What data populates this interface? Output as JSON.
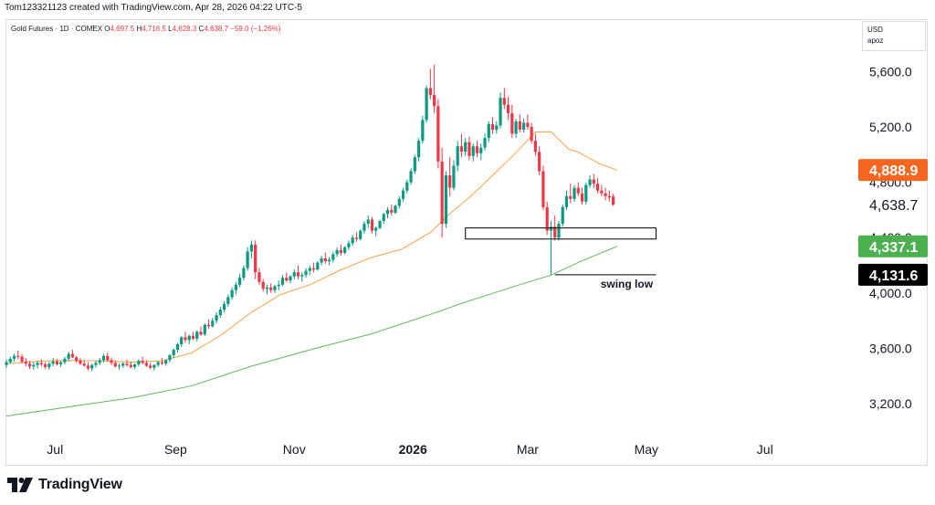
{
  "header": {
    "attribution": "Tom123321123 created with TradingView.com, Apr 28, 2026 04:22 UTC-5"
  },
  "legend": {
    "symbol": "Gold Futures · 1D · COMEX",
    "open_label": "O",
    "open": "4,697.5",
    "high_label": "H",
    "high": "4,716.5",
    "low_label": "L",
    "low": "4,628.3",
    "close_label": "C",
    "close": "4,638.7",
    "change": "−59.0 (−1.26%)"
  },
  "currency": {
    "code": "USD",
    "unit": "apoz"
  },
  "footer": {
    "brand": "TradingView"
  },
  "colors": {
    "up": "#089981",
    "down": "#f23645",
    "ema50": "#f7a146",
    "ma200": "#5cb85c",
    "ema50_tag": "#f7661e",
    "ma200_tag": "#4caf50",
    "swing_tag": "#000000"
  },
  "chart_data": {
    "type": "candlestick",
    "title": "Gold Futures · 1D · COMEX",
    "ylim": [
      2950,
      5820
    ],
    "y_ticks": [
      "5,600.0",
      "5,200.0",
      "4,800.0",
      "4,400.0",
      "4,000.0",
      "3,600.0",
      "3,200.0"
    ],
    "y_tick_values": [
      5600,
      5200,
      4800,
      4400,
      4000,
      3600,
      3200
    ],
    "x_labels": [
      {
        "label": "Jul",
        "day": 7
      },
      {
        "label": "Sep",
        "day": 69
      },
      {
        "label": "Nov",
        "day": 130
      },
      {
        "label": "2026",
        "day": 191
      },
      {
        "label": "Mar",
        "day": 250
      },
      {
        "label": "May",
        "day": 311
      },
      {
        "label": "Jul",
        "day": 372
      }
    ],
    "xlim": [
      -18,
      420
    ],
    "price_tags": [
      {
        "name": "ema50",
        "label": "4,888.9",
        "value": 4888.9,
        "color": "#f7661e",
        "text_color": "#ffffff"
      },
      {
        "name": "last",
        "label": "4,638.7",
        "value": 4638.7,
        "color": "none",
        "text_color": "#131722"
      },
      {
        "name": "ma200",
        "label": "4,337.1",
        "value": 4337.1,
        "color": "#4caf50",
        "text_color": "#ffffff"
      },
      {
        "name": "swing-low",
        "label": "4,131.6",
        "value": 4131.6,
        "color": "#000000",
        "text_color": "#ffffff"
      }
    ],
    "support_zone": {
      "day_start": 218,
      "day_end": 316,
      "price_top": 4470,
      "price_bottom": 4390
    },
    "swing_low": {
      "label": "swing low",
      "price": 4131.6,
      "day_start": 264,
      "day_end": 316
    },
    "ema50_series": [
      [
        -18,
        3490
      ],
      [
        0,
        3508
      ],
      [
        15,
        3513
      ],
      [
        31,
        3510
      ],
      [
        46,
        3500
      ],
      [
        62,
        3510
      ],
      [
        77,
        3566
      ],
      [
        92,
        3692
      ],
      [
        108,
        3861
      ],
      [
        123,
        3989
      ],
      [
        138,
        4060
      ],
      [
        154,
        4167
      ],
      [
        169,
        4254
      ],
      [
        185,
        4316
      ],
      [
        200,
        4437
      ],
      [
        211,
        4586
      ],
      [
        220,
        4689
      ],
      [
        232,
        4850
      ],
      [
        243,
        5000
      ],
      [
        254,
        5164
      ],
      [
        262,
        5165
      ],
      [
        271,
        5041
      ],
      [
        276,
        5018
      ],
      [
        287,
        4933
      ],
      [
        296,
        4888
      ]
    ],
    "ma200_series": [
      [
        -18,
        3111
      ],
      [
        15,
        3179
      ],
      [
        46,
        3242
      ],
      [
        77,
        3328
      ],
      [
        108,
        3471
      ],
      [
        138,
        3589
      ],
      [
        169,
        3702
      ],
      [
        200,
        3845
      ],
      [
        217,
        3930
      ],
      [
        243,
        4047
      ],
      [
        262,
        4129
      ],
      [
        277,
        4227
      ],
      [
        296,
        4337
      ]
    ],
    "candles": [
      [
        -18,
        3480,
        3520,
        3460,
        3500
      ],
      [
        -16,
        3500,
        3540,
        3490,
        3525
      ],
      [
        -14,
        3525,
        3560,
        3505,
        3545
      ],
      [
        -12,
        3545,
        3585,
        3520,
        3540
      ],
      [
        -10,
        3540,
        3560,
        3490,
        3505
      ],
      [
        -8,
        3505,
        3530,
        3470,
        3490
      ],
      [
        -6,
        3490,
        3510,
        3450,
        3470
      ],
      [
        -4,
        3470,
        3500,
        3445,
        3480
      ],
      [
        -2,
        3480,
        3510,
        3455,
        3495
      ],
      [
        0,
        3495,
        3520,
        3470,
        3485
      ],
      [
        2,
        3485,
        3500,
        3450,
        3465
      ],
      [
        4,
        3465,
        3500,
        3445,
        3490
      ],
      [
        6,
        3490,
        3530,
        3470,
        3505
      ],
      [
        8,
        3505,
        3525,
        3475,
        3485
      ],
      [
        10,
        3485,
        3510,
        3465,
        3500
      ],
      [
        12,
        3500,
        3540,
        3485,
        3525
      ],
      [
        14,
        3525,
        3575,
        3505,
        3560
      ],
      [
        16,
        3560,
        3590,
        3530,
        3535
      ],
      [
        18,
        3535,
        3545,
        3495,
        3510
      ],
      [
        20,
        3510,
        3530,
        3480,
        3490
      ],
      [
        22,
        3490,
        3515,
        3470,
        3475
      ],
      [
        24,
        3475,
        3500,
        3440,
        3455
      ],
      [
        26,
        3455,
        3490,
        3435,
        3480
      ],
      [
        28,
        3480,
        3510,
        3460,
        3495
      ],
      [
        30,
        3495,
        3530,
        3480,
        3515
      ],
      [
        32,
        3515,
        3560,
        3500,
        3545
      ],
      [
        34,
        3545,
        3570,
        3505,
        3515
      ],
      [
        36,
        3515,
        3535,
        3480,
        3495
      ],
      [
        38,
        3495,
        3515,
        3460,
        3470
      ],
      [
        40,
        3470,
        3490,
        3445,
        3475
      ],
      [
        42,
        3475,
        3500,
        3460,
        3490
      ],
      [
        44,
        3490,
        3520,
        3470,
        3480
      ],
      [
        46,
        3480,
        3505,
        3455,
        3465
      ],
      [
        48,
        3465,
        3490,
        3450,
        3485
      ],
      [
        50,
        3485,
        3520,
        3470,
        3510
      ],
      [
        52,
        3510,
        3540,
        3485,
        3495
      ],
      [
        54,
        3495,
        3515,
        3465,
        3475
      ],
      [
        56,
        3475,
        3495,
        3450,
        3460
      ],
      [
        58,
        3460,
        3485,
        3440,
        3480
      ],
      [
        60,
        3480,
        3510,
        3465,
        3500
      ],
      [
        62,
        3500,
        3530,
        3480,
        3490
      ],
      [
        64,
        3490,
        3520,
        3475,
        3515
      ],
      [
        66,
        3515,
        3560,
        3500,
        3550
      ],
      [
        68,
        3550,
        3600,
        3530,
        3590
      ],
      [
        70,
        3590,
        3640,
        3570,
        3630
      ],
      [
        72,
        3630,
        3690,
        3610,
        3680
      ],
      [
        74,
        3680,
        3720,
        3640,
        3660
      ],
      [
        76,
        3660,
        3700,
        3630,
        3690
      ],
      [
        78,
        3690,
        3720,
        3660,
        3670
      ],
      [
        80,
        3670,
        3730,
        3650,
        3720
      ],
      [
        82,
        3720,
        3760,
        3690,
        3700
      ],
      [
        84,
        3700,
        3780,
        3690,
        3770
      ],
      [
        86,
        3770,
        3810,
        3740,
        3760
      ],
      [
        88,
        3760,
        3820,
        3750,
        3800
      ],
      [
        90,
        3800,
        3860,
        3780,
        3840
      ],
      [
        92,
        3840,
        3900,
        3820,
        3880
      ],
      [
        94,
        3880,
        3940,
        3860,
        3920
      ],
      [
        96,
        3920,
        3990,
        3900,
        3970
      ],
      [
        98,
        3970,
        4040,
        3950,
        4020
      ],
      [
        100,
        4020,
        4080,
        3990,
        4060
      ],
      [
        102,
        4060,
        4140,
        4040,
        4110
      ],
      [
        104,
        4110,
        4200,
        4090,
        4180
      ],
      [
        106,
        4180,
        4330,
        4160,
        4300
      ],
      [
        108,
        4300,
        4380,
        4250,
        4350
      ],
      [
        110,
        4350,
        4380,
        4100,
        4150
      ],
      [
        112,
        4150,
        4180,
        4060,
        4080
      ],
      [
        114,
        4080,
        4100,
        4010,
        4030
      ],
      [
        116,
        4030,
        4060,
        3990,
        4040
      ],
      [
        118,
        4040,
        4070,
        4000,
        4020
      ],
      [
        120,
        4020,
        4060,
        4000,
        4050
      ],
      [
        122,
        4050,
        4090,
        4020,
        4060
      ],
      [
        124,
        4060,
        4130,
        4050,
        4110
      ],
      [
        126,
        4110,
        4150,
        4080,
        4090
      ],
      [
        128,
        4090,
        4130,
        4070,
        4120
      ],
      [
        130,
        4120,
        4170,
        4100,
        4150
      ],
      [
        132,
        4150,
        4200,
        4100,
        4120
      ],
      [
        134,
        4120,
        4150,
        4080,
        4130
      ],
      [
        136,
        4130,
        4180,
        4110,
        4160
      ],
      [
        138,
        4160,
        4200,
        4130,
        4180
      ],
      [
        140,
        4180,
        4220,
        4150,
        4170
      ],
      [
        142,
        4170,
        4230,
        4160,
        4220
      ],
      [
        144,
        4220,
        4270,
        4200,
        4250
      ],
      [
        146,
        4250,
        4290,
        4210,
        4230
      ],
      [
        148,
        4230,
        4260,
        4200,
        4240
      ],
      [
        150,
        4240,
        4300,
        4220,
        4280
      ],
      [
        152,
        4280,
        4330,
        4260,
        4310
      ],
      [
        154,
        4310,
        4350,
        4270,
        4290
      ],
      [
        156,
        4290,
        4340,
        4280,
        4330
      ],
      [
        158,
        4330,
        4380,
        4310,
        4360
      ],
      [
        160,
        4360,
        4420,
        4340,
        4400
      ],
      [
        162,
        4400,
        4440,
        4370,
        4390
      ],
      [
        164,
        4390,
        4460,
        4380,
        4450
      ],
      [
        166,
        4450,
        4520,
        4430,
        4500
      ],
      [
        168,
        4500,
        4560,
        4470,
        4530
      ],
      [
        170,
        4530,
        4550,
        4430,
        4450
      ],
      [
        172,
        4450,
        4480,
        4410,
        4470
      ],
      [
        174,
        4470,
        4530,
        4460,
        4520
      ],
      [
        176,
        4520,
        4580,
        4500,
        4570
      ],
      [
        178,
        4570,
        4620,
        4540,
        4600
      ],
      [
        180,
        4600,
        4640,
        4560,
        4580
      ],
      [
        182,
        4580,
        4640,
        4570,
        4630
      ],
      [
        184,
        4630,
        4700,
        4610,
        4680
      ],
      [
        186,
        4680,
        4760,
        4660,
        4740
      ],
      [
        188,
        4740,
        4820,
        4720,
        4800
      ],
      [
        190,
        4800,
        4900,
        4780,
        4880
      ],
      [
        192,
        4880,
        5000,
        4860,
        4980
      ],
      [
        194,
        4980,
        5120,
        4950,
        5100
      ],
      [
        196,
        5100,
        5280,
        5080,
        5250
      ],
      [
        198,
        5250,
        5500,
        5230,
        5480
      ],
      [
        200,
        5480,
        5620,
        5400,
        5430
      ],
      [
        202,
        5430,
        5650,
        5300,
        5350
      ],
      [
        204,
        5350,
        5400,
        4900,
        4950
      ],
      [
        206,
        4950,
        5050,
        4400,
        4500
      ],
      [
        208,
        4500,
        4880,
        4470,
        4850
      ],
      [
        210,
        4850,
        4980,
        4700,
        4760
      ],
      [
        212,
        4760,
        4960,
        4740,
        4920
      ],
      [
        214,
        4920,
        5100,
        4880,
        5060
      ],
      [
        216,
        5060,
        5150,
        4980,
        5020
      ],
      [
        218,
        5020,
        5120,
        4990,
        5090
      ],
      [
        220,
        5090,
        5130,
        4960,
        4990
      ],
      [
        222,
        4990,
        5080,
        4950,
        5060
      ],
      [
        224,
        5060,
        5100,
        4980,
        5010
      ],
      [
        226,
        5010,
        5080,
        4960,
        5050
      ],
      [
        228,
        5050,
        5150,
        5030,
        5120
      ],
      [
        230,
        5120,
        5240,
        5090,
        5220
      ],
      [
        232,
        5220,
        5270,
        5150,
        5180
      ],
      [
        234,
        5180,
        5240,
        5150,
        5210
      ],
      [
        236,
        5210,
        5450,
        5190,
        5410
      ],
      [
        238,
        5410,
        5480,
        5330,
        5360
      ],
      [
        240,
        5360,
        5420,
        5250,
        5300
      ],
      [
        242,
        5300,
        5360,
        5120,
        5150
      ],
      [
        244,
        5150,
        5260,
        5120,
        5240
      ],
      [
        246,
        5240,
        5290,
        5160,
        5180
      ],
      [
        248,
        5180,
        5260,
        5160,
        5230
      ],
      [
        250,
        5230,
        5290,
        5180,
        5200
      ],
      [
        252,
        5200,
        5230,
        5080,
        5100
      ],
      [
        254,
        5100,
        5150,
        4990,
        5020
      ],
      [
        256,
        5020,
        5060,
        4850,
        4880
      ],
      [
        258,
        4880,
        4920,
        4600,
        4620
      ],
      [
        260,
        4620,
        4660,
        4420,
        4450
      ],
      [
        262,
        4450,
        4520,
        4131.6,
        4480
      ],
      [
        264,
        4480,
        4560,
        4380,
        4400
      ],
      [
        266,
        4400,
        4520,
        4380,
        4500
      ],
      [
        268,
        4500,
        4640,
        4480,
        4620
      ],
      [
        270,
        4620,
        4740,
        4600,
        4700
      ],
      [
        272,
        4700,
        4790,
        4650,
        4680
      ],
      [
        274,
        4680,
        4780,
        4660,
        4760
      ],
      [
        276,
        4760,
        4800,
        4700,
        4720
      ],
      [
        278,
        4720,
        4760,
        4640,
        4660
      ],
      [
        280,
        4660,
        4800,
        4640,
        4780
      ],
      [
        282,
        4780,
        4850,
        4760,
        4820
      ],
      [
        284,
        4820,
        4860,
        4760,
        4790
      ],
      [
        286,
        4790,
        4830,
        4720,
        4740
      ],
      [
        288,
        4740,
        4780,
        4700,
        4720
      ],
      [
        290,
        4720,
        4760,
        4670,
        4700
      ],
      [
        292,
        4700,
        4740,
        4660,
        4690
      ],
      [
        294,
        4697.5,
        4716.5,
        4628.3,
        4638.7
      ]
    ]
  }
}
